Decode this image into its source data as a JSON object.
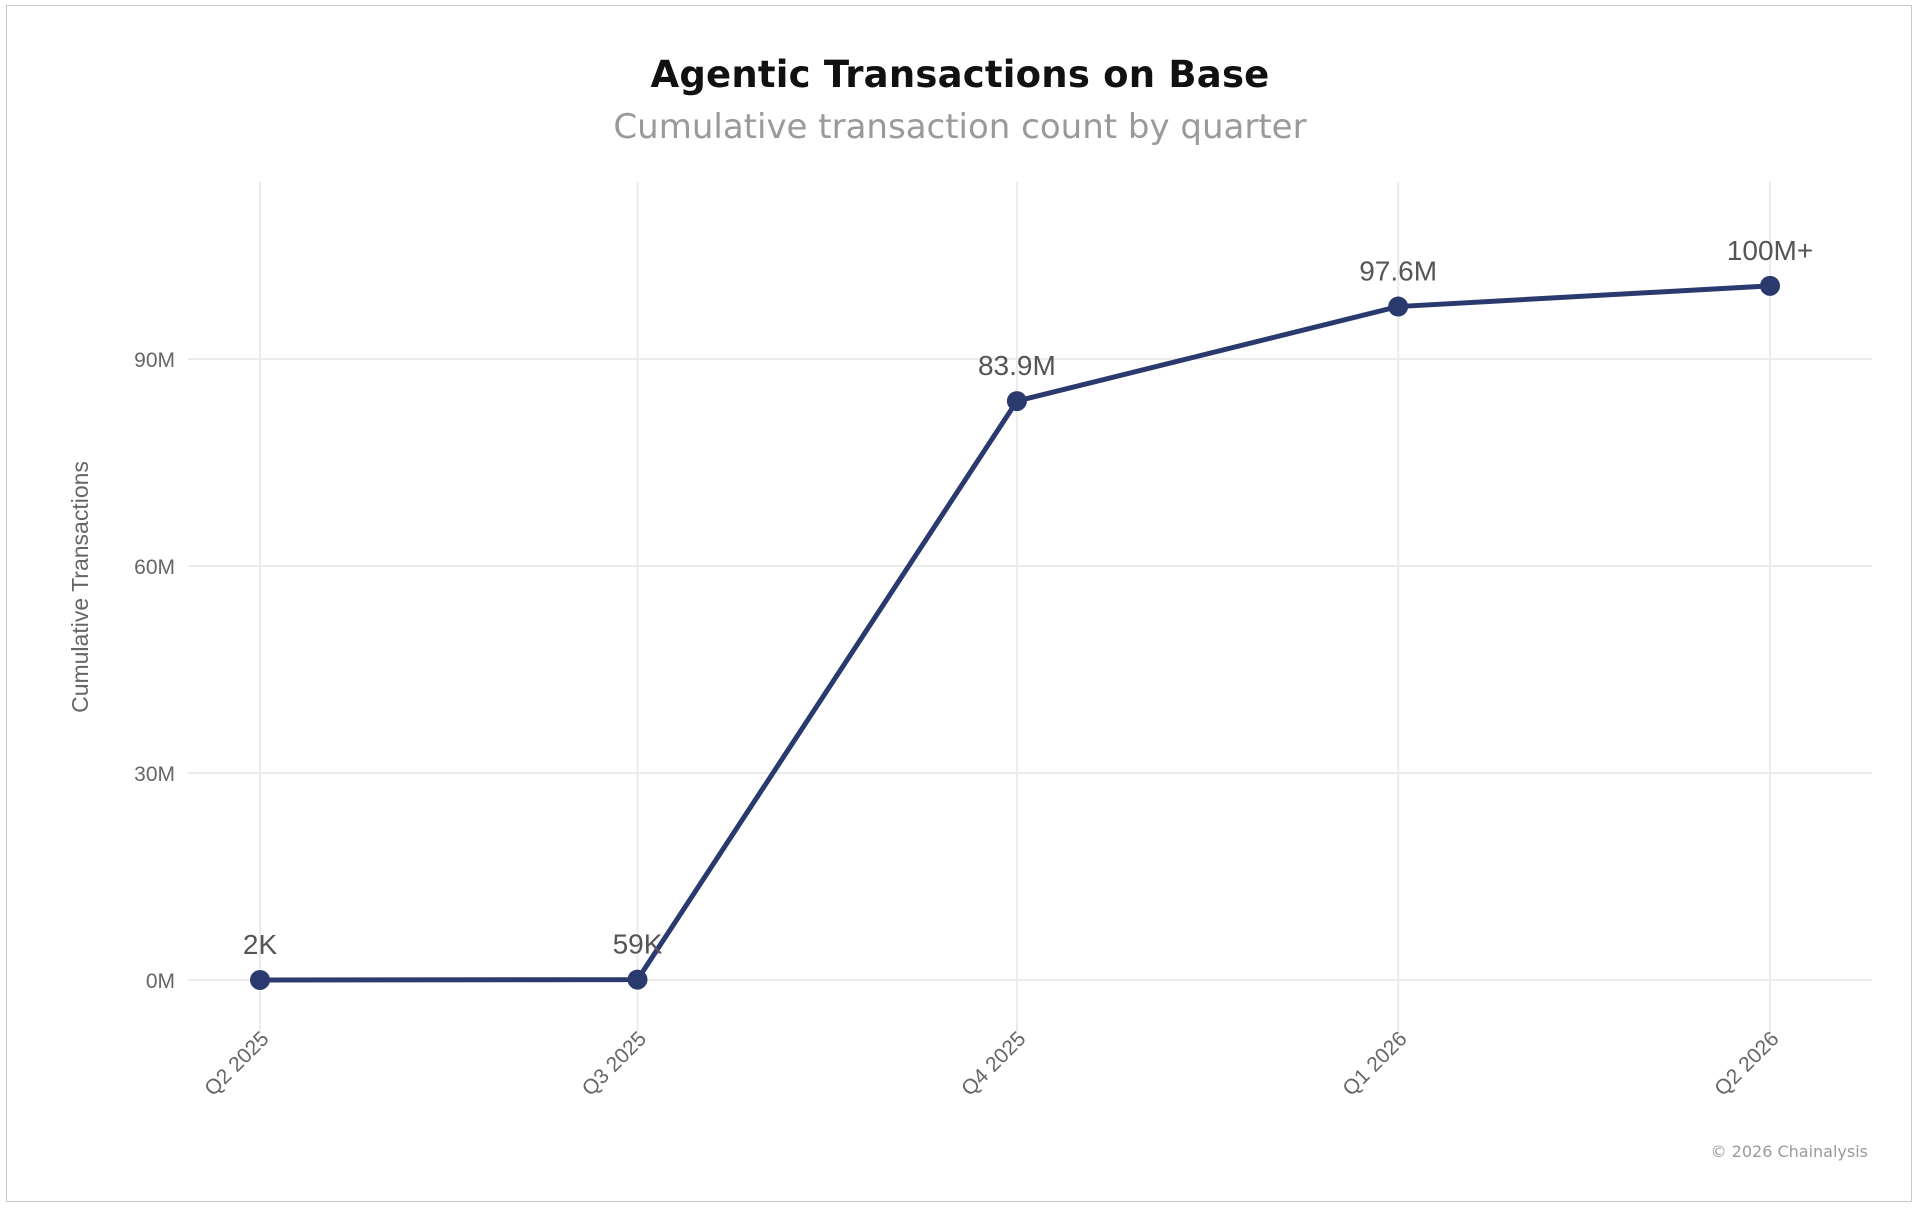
{
  "chart_data": {
    "type": "line",
    "title": "Agentic Transactions on Base",
    "subtitle": "Cumulative transaction count by quarter",
    "xlabel": "",
    "ylabel": "Cumulative Transactions",
    "categories": [
      "Q2 2025",
      "Q3 2025",
      "Q4 2025",
      "Q1 2026",
      "Q2 2026"
    ],
    "x_positions": [
      0,
      1,
      2.005,
      3.015,
      4
    ],
    "series": [
      {
        "values": [
          0.002,
          0.059,
          83.9,
          97.6,
          100.6
        ],
        "labels": [
          "2K",
          "59K",
          "83.9M",
          "97.6M",
          "100M+"
        ]
      }
    ],
    "y_unit": "millions",
    "ylim": [
      -8,
      115
    ],
    "yticks": [
      0,
      30,
      60,
      90
    ],
    "ytick_labels": [
      "0M",
      "30M",
      "60M",
      "90M"
    ],
    "grid": true,
    "legend": "none",
    "line_color": "#2b3a6e",
    "grid_color": "#ebebeb",
    "copyright": "© 2026 Chainalysis"
  }
}
